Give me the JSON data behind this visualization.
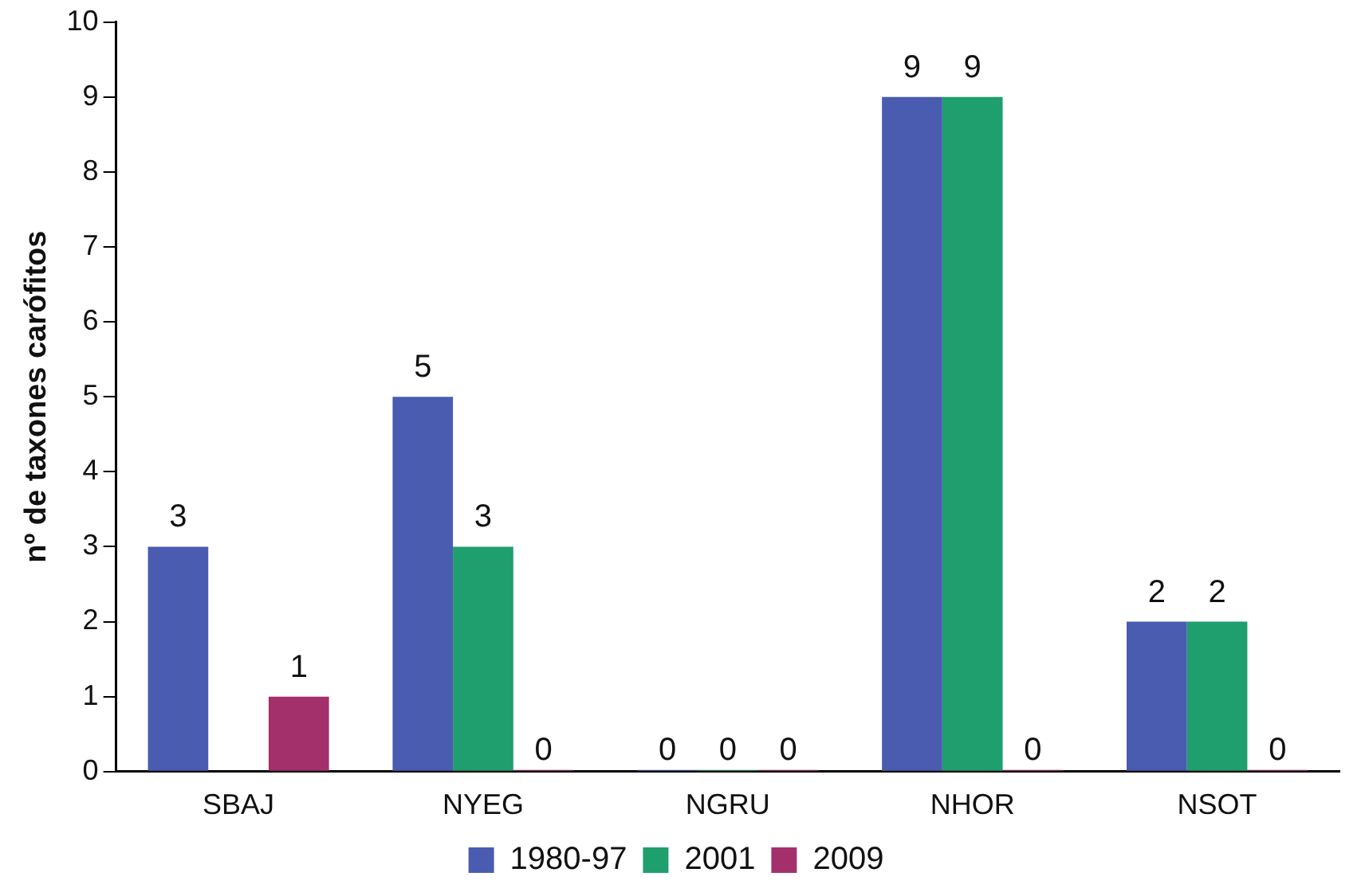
{
  "chart_data": {
    "type": "bar",
    "ylabel": "nº de taxones carófitos",
    "categories": [
      "SBAJ",
      "NYEG",
      "NGRU",
      "NHOR",
      "NSOT"
    ],
    "series": [
      {
        "name": "1980-97",
        "color": "#4a5cb0",
        "values": [
          3,
          5,
          0,
          9,
          2
        ]
      },
      {
        "name": "2001",
        "color": "#1f9e6e",
        "values": [
          null,
          3,
          0,
          9,
          2
        ]
      },
      {
        "name": "2009",
        "color": "#a3306b",
        "values": [
          1,
          0,
          0,
          0,
          0
        ]
      }
    ],
    "ylim": [
      0,
      10
    ],
    "yticks": [
      0,
      1,
      2,
      3,
      4,
      5,
      6,
      7,
      8,
      9,
      10
    ],
    "grid": false,
    "legend": "bottom",
    "data_labels": true
  }
}
